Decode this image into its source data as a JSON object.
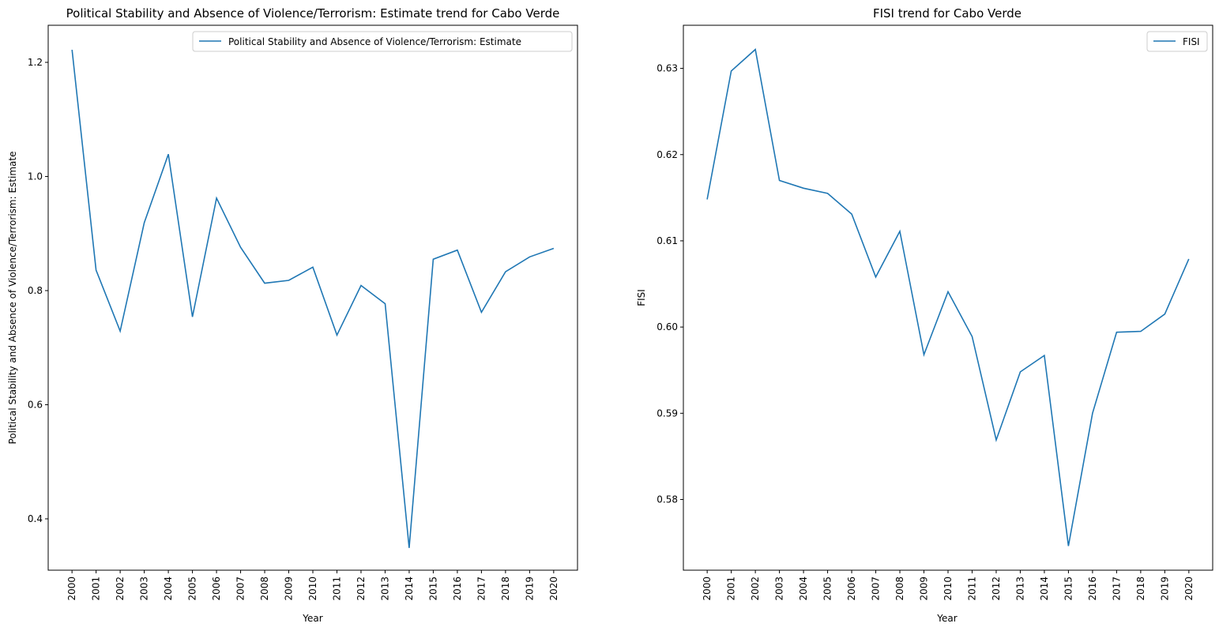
{
  "chart_data": [
    {
      "type": "line",
      "title": "Political Stability and Absence of Violence/Terrorism: Estimate trend for Cabo Verde",
      "xlabel": "Year",
      "ylabel": "Political Stability and Absence of Violence/Terrorism: Estimate",
      "categories": [
        "2000",
        "2001",
        "2002",
        "2003",
        "2004",
        "2005",
        "2006",
        "2007",
        "2008",
        "2009",
        "2010",
        "2011",
        "2012",
        "2013",
        "2014",
        "2015",
        "2016",
        "2017",
        "2018",
        "2019",
        "2020"
      ],
      "series": [
        {
          "name": "Political Stability and Absence of Violence/Terrorism: Estimate",
          "values": [
            1.222,
            0.836,
            0.729,
            0.919,
            1.039,
            0.754,
            0.962,
            0.876,
            0.813,
            0.818,
            0.841,
            0.722,
            0.809,
            0.777,
            0.349,
            0.855,
            0.871,
            0.762,
            0.833,
            0.859,
            0.874
          ]
        }
      ],
      "ylim": [
        0.31,
        1.265
      ],
      "yticks": [
        "0.4",
        "0.6",
        "0.8",
        "1.0",
        "1.2"
      ],
      "legend": "top-right",
      "grid": false,
      "color": "#1f77b4"
    },
    {
      "type": "line",
      "title": "FISI trend for Cabo Verde",
      "xlabel": "Year",
      "ylabel": "FISI",
      "categories": [
        "2000",
        "2001",
        "2002",
        "2003",
        "2004",
        "2005",
        "2006",
        "2007",
        "2008",
        "2009",
        "2010",
        "2011",
        "2012",
        "2013",
        "2014",
        "2015",
        "2016",
        "2017",
        "2018",
        "2019",
        "2020"
      ],
      "series": [
        {
          "name": "FISI",
          "values": [
            0.6148,
            0.6297,
            0.6322,
            0.617,
            0.6161,
            0.6155,
            0.6131,
            0.6058,
            0.6111,
            0.5968,
            0.6041,
            0.5989,
            0.5869,
            0.5948,
            0.5967,
            0.5746,
            0.59,
            0.5994,
            0.5995,
            0.6015,
            0.6079
          ]
        }
      ],
      "ylim": [
        0.5718,
        0.635
      ],
      "yticks": [
        "0.58",
        "0.59",
        "0.60",
        "0.61",
        "0.62",
        "0.63"
      ],
      "legend": "top-right",
      "grid": false,
      "color": "#1f77b4"
    }
  ]
}
